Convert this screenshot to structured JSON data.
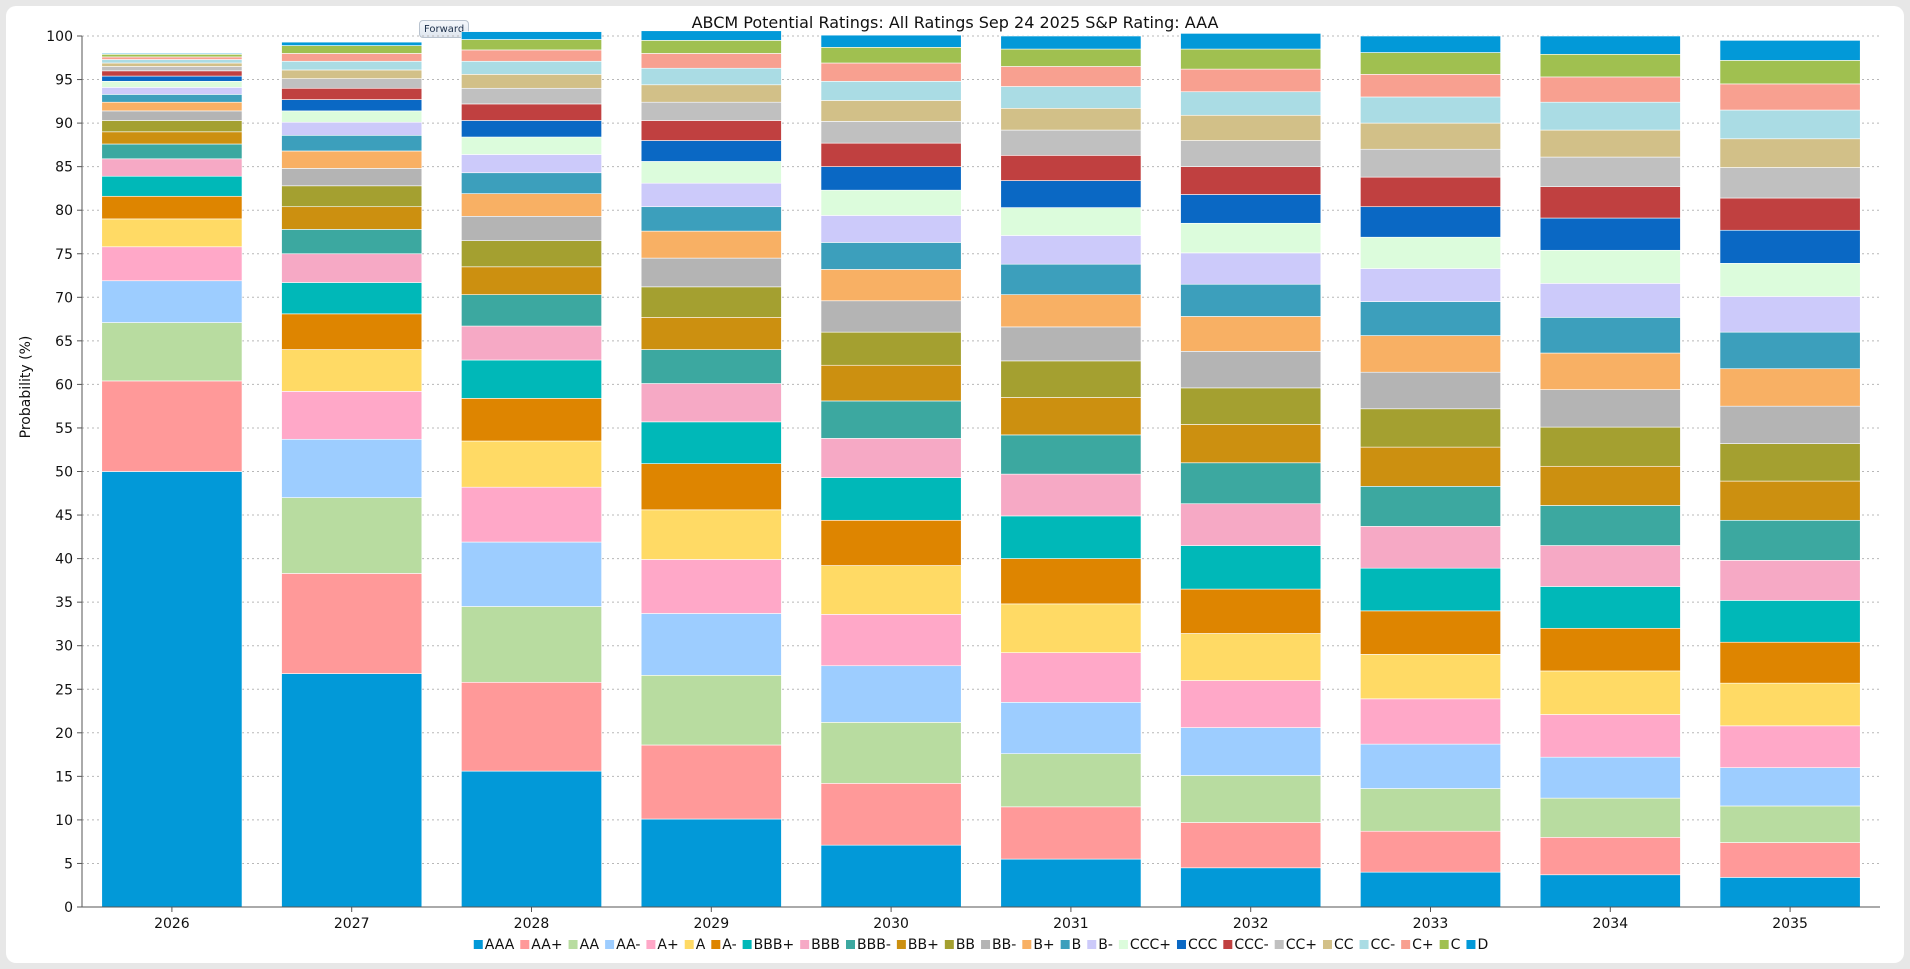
{
  "window": {
    "forward_label": "Forward"
  },
  "chart_data": {
    "type": "bar",
    "stacked": true,
    "title": "ABCM Potential Ratings: All Ratings   Sep 24 2025 S&P Rating: AAA",
    "xlabel": "",
    "ylabel": "Probability (%)",
    "ylim": [
      0,
      100
    ],
    "yticks": [
      0,
      5,
      10,
      15,
      20,
      25,
      30,
      35,
      40,
      45,
      50,
      55,
      60,
      65,
      70,
      75,
      80,
      85,
      90,
      95,
      100
    ],
    "grid": true,
    "legend_position": "bottom",
    "categories": [
      "2026",
      "2027",
      "2028",
      "2029",
      "2030",
      "2031",
      "2032",
      "2033",
      "2034",
      "2035"
    ],
    "series": [
      {
        "name": "AAA",
        "color": "#0299d8",
        "values": [
          50.0,
          26.8,
          15.6,
          10.1,
          7.1,
          5.5,
          4.5,
          4.0,
          3.7,
          3.4
        ]
      },
      {
        "name": "AA+",
        "color": "#ff9999",
        "values": [
          10.4,
          11.5,
          10.2,
          8.5,
          7.1,
          6.0,
          5.2,
          4.7,
          4.3,
          4.0
        ]
      },
      {
        "name": "AA",
        "color": "#b8dca0",
        "values": [
          6.7,
          8.7,
          8.7,
          8.0,
          7.0,
          6.1,
          5.4,
          4.9,
          4.5,
          4.2
        ]
      },
      {
        "name": "AA-",
        "color": "#9dcdff",
        "values": [
          4.8,
          6.7,
          7.4,
          7.1,
          6.5,
          5.9,
          5.5,
          5.1,
          4.7,
          4.4
        ]
      },
      {
        "name": "A+",
        "color": "#ffa8c8",
        "values": [
          3.9,
          5.5,
          6.3,
          6.2,
          5.9,
          5.7,
          5.4,
          5.2,
          4.9,
          4.8
        ]
      },
      {
        "name": "A",
        "color": "#ffda65",
        "values": [
          3.2,
          4.8,
          5.3,
          5.7,
          5.6,
          5.6,
          5.4,
          5.1,
          5.0,
          4.9
        ]
      },
      {
        "name": "A-",
        "color": "#de8500",
        "values": [
          2.6,
          4.1,
          4.9,
          5.3,
          5.2,
          5.2,
          5.1,
          5.0,
          4.9,
          4.7
        ]
      },
      {
        "name": "BBB+",
        "color": "#00b8b8",
        "values": [
          2.3,
          3.6,
          4.4,
          4.8,
          4.9,
          4.9,
          5.0,
          4.9,
          4.8,
          4.8
        ]
      },
      {
        "name": "BBB",
        "color": "#f6a9c5",
        "values": [
          2.0,
          3.3,
          3.9,
          4.4,
          4.5,
          4.8,
          4.8,
          4.8,
          4.7,
          4.6
        ]
      },
      {
        "name": "BBB-",
        "color": "#3ca8a0",
        "values": [
          1.7,
          2.8,
          3.6,
          3.9,
          4.3,
          4.5,
          4.7,
          4.6,
          4.6,
          4.6
        ]
      },
      {
        "name": "BB+",
        "color": "#cc9010",
        "values": [
          1.4,
          2.6,
          3.2,
          3.7,
          4.1,
          4.3,
          4.4,
          4.5,
          4.5,
          4.5
        ]
      },
      {
        "name": "BB",
        "color": "#a4a030",
        "values": [
          1.3,
          2.4,
          3.0,
          3.5,
          3.8,
          4.2,
          4.2,
          4.4,
          4.5,
          4.3
        ]
      },
      {
        "name": "BB-",
        "color": "#b4b4b4",
        "values": [
          1.1,
          2.0,
          2.8,
          3.3,
          3.6,
          3.9,
          4.2,
          4.2,
          4.3,
          4.3
        ]
      },
      {
        "name": "B+",
        "color": "#f8b064",
        "values": [
          1.0,
          2.0,
          2.6,
          3.1,
          3.6,
          3.7,
          4.0,
          4.2,
          4.2,
          4.3
        ]
      },
      {
        "name": "B",
        "color": "#3c9fbc",
        "values": [
          0.9,
          1.8,
          2.4,
          2.8,
          3.1,
          3.5,
          3.7,
          3.9,
          4.1,
          4.2
        ]
      },
      {
        "name": "B-",
        "color": "#cccafa",
        "values": [
          0.8,
          1.5,
          2.1,
          2.7,
          3.1,
          3.3,
          3.6,
          3.8,
          3.9,
          4.1
        ]
      },
      {
        "name": "CCC+",
        "color": "#dcfcdc",
        "values": [
          0.7,
          1.3,
          2.0,
          2.5,
          2.9,
          3.2,
          3.4,
          3.6,
          3.8,
          3.8
        ]
      },
      {
        "name": "CCC",
        "color": "#0a68c4",
        "values": [
          0.6,
          1.3,
          1.9,
          2.4,
          2.7,
          3.1,
          3.3,
          3.5,
          3.7,
          3.8
        ]
      },
      {
        "name": "CCC-",
        "color": "#c04040",
        "values": [
          0.6,
          1.3,
          1.9,
          2.3,
          2.7,
          2.9,
          3.2,
          3.4,
          3.6,
          3.7
        ]
      },
      {
        "name": "CC+",
        "color": "#c0c0c0",
        "values": [
          0.5,
          1.1,
          1.8,
          2.1,
          2.5,
          2.9,
          3.0,
          3.2,
          3.4,
          3.5
        ]
      },
      {
        "name": "CC",
        "color": "#d2c088",
        "values": [
          0.4,
          1.0,
          1.6,
          2.0,
          2.4,
          2.5,
          2.9,
          3.0,
          3.1,
          3.3
        ]
      },
      {
        "name": "CC-",
        "color": "#aadce4",
        "values": [
          0.4,
          1.0,
          1.5,
          1.9,
          2.2,
          2.5,
          2.7,
          3.0,
          3.2,
          3.3
        ]
      },
      {
        "name": "C+",
        "color": "#f8a090",
        "values": [
          0.3,
          0.9,
          1.3,
          1.7,
          2.1,
          2.3,
          2.6,
          2.6,
          2.9,
          3.0
        ]
      },
      {
        "name": "C",
        "color": "#a0c050",
        "values": [
          0.3,
          0.9,
          1.2,
          1.5,
          1.8,
          2.0,
          2.3,
          2.5,
          2.6,
          2.7
        ]
      },
      {
        "name": "D",
        "color": "#0299d8",
        "values": [
          0.1,
          0.4,
          0.9,
          1.1,
          1.4,
          1.5,
          1.8,
          1.9,
          2.1,
          2.3
        ]
      }
    ]
  }
}
